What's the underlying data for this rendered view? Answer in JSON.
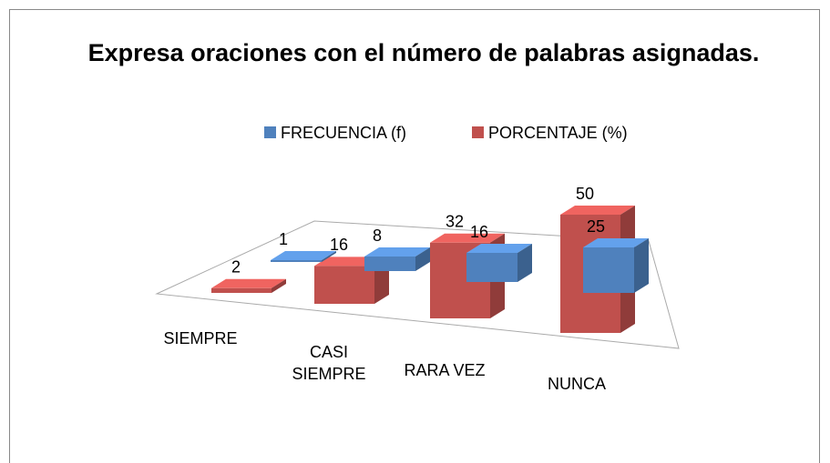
{
  "chart_data": {
    "type": "bar3d",
    "title": "Expresa oraciones con el número de palabras asignadas.",
    "categories": [
      "SIEMPRE",
      "CASI SIEMPRE",
      "RARA VEZ",
      "NUNCA"
    ],
    "series": [
      {
        "name": "FRECUENCIA (f)",
        "color": "#4f81bd",
        "values": [
          1,
          8,
          16,
          25
        ]
      },
      {
        "name": "PORCENTAJE (%)",
        "color": "#c0504d",
        "values": [
          2,
          16,
          32,
          50
        ]
      }
    ],
    "legend": "top"
  }
}
